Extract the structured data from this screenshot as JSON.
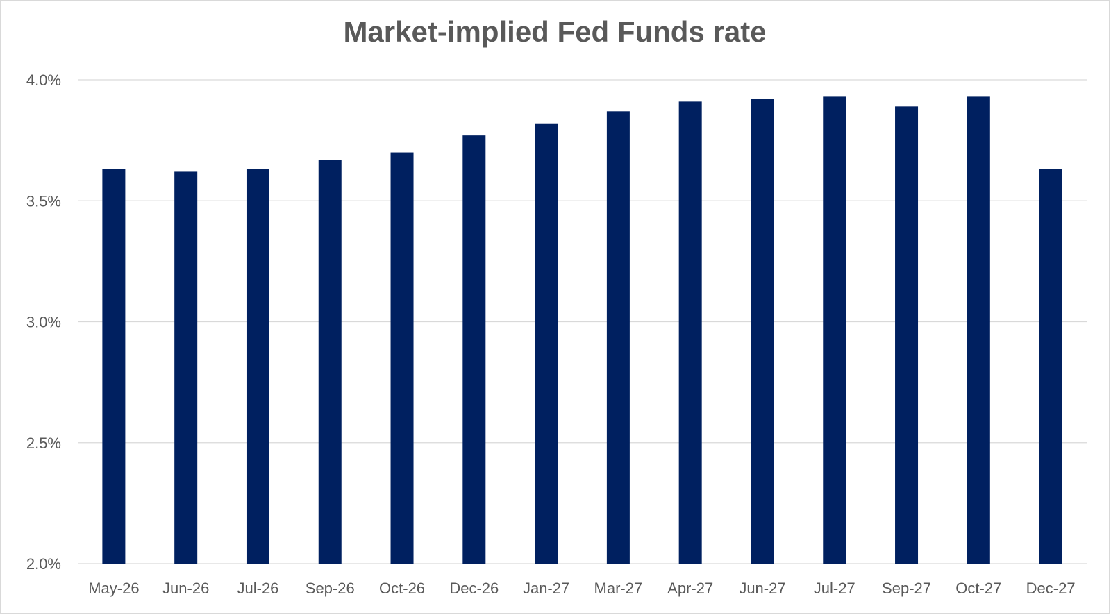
{
  "chart_data": {
    "type": "bar",
    "title": "Market-implied Fed Funds rate",
    "xlabel": "",
    "ylabel": "",
    "categories": [
      "May-26",
      "Jun-26",
      "Jul-26",
      "Sep-26",
      "Oct-26",
      "Dec-26",
      "Jan-27",
      "Mar-27",
      "Apr-27",
      "Jun-27",
      "Jul-27",
      "Sep-27",
      "Oct-27",
      "Dec-27"
    ],
    "values": [
      3.63,
      3.62,
      3.63,
      3.67,
      3.7,
      3.77,
      3.82,
      3.87,
      3.91,
      3.92,
      3.93,
      3.89,
      3.93,
      3.63
    ],
    "ylim": [
      2.0,
      4.0
    ],
    "yticks": [
      2.0,
      2.5,
      3.0,
      3.5,
      4.0
    ],
    "ytick_labels": [
      "2.0%",
      "2.5%",
      "3.0%",
      "3.5%",
      "4.0%"
    ],
    "grid": true,
    "legend": "none",
    "bar_color": "#002060",
    "grid_color": "#d9d9d9"
  }
}
